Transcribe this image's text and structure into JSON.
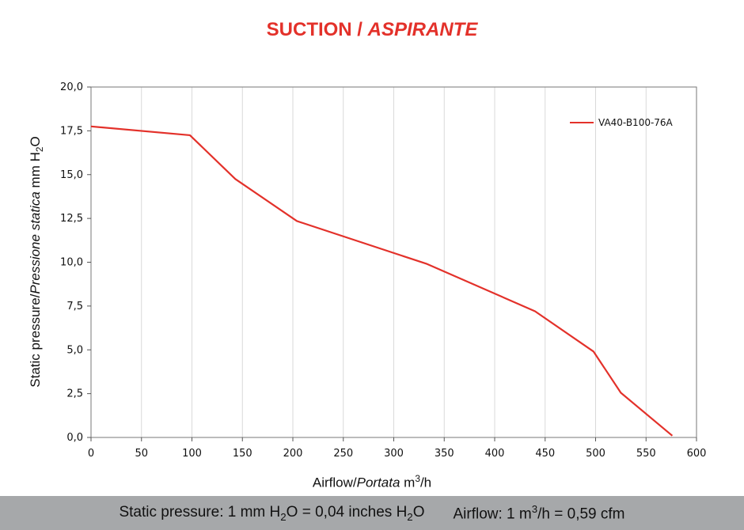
{
  "title": {
    "main": "SUCTION /",
    "italic": "ASPIRANTE"
  },
  "colors": {
    "title": "#e3312a",
    "series": "#e3312a",
    "footer_bg": "#a6a8aa",
    "grid": "#d9d9d9"
  },
  "y_axis_label": {
    "part1": "Static pressure/",
    "part2_italic": "Pressione statica",
    "part3": " mm  H",
    "sub": "2",
    "part4": "O"
  },
  "x_axis_label": {
    "part1": "Airflow/",
    "part2_italic": "Portata",
    "part3": " m",
    "sup": "3",
    "part4": "/h"
  },
  "footer": {
    "a1": "Static pressure: 1 mm H",
    "a_sub1": "2",
    "a2": "O = 0,04 inches H",
    "a_sub2": "2",
    "a3": "O",
    "b1": "Airflow: 1 m",
    "b_sup": "3",
    "b2": "/h = 0,59 cfm"
  },
  "chart_data": {
    "type": "line",
    "title": "SUCTION / ASPIRANTE",
    "xlabel": "Airflow/Portata m3/h",
    "ylabel": "Static pressure/Pressione statica mm H2O",
    "xlim": [
      0,
      600
    ],
    "ylim": [
      0,
      20
    ],
    "x_ticks": [
      0,
      50,
      100,
      150,
      200,
      250,
      300,
      350,
      400,
      450,
      500,
      550,
      600
    ],
    "y_ticks": [
      0,
      2.5,
      5,
      7.5,
      10,
      12.5,
      15,
      17.5,
      20
    ],
    "y_tick_labels": [
      "0,0",
      "2,5",
      "5,0",
      "7,5",
      "10,0",
      "12,5",
      "15,0",
      "17,5",
      "20,0"
    ],
    "grid": "vertical",
    "legend_position": "top-right",
    "series": [
      {
        "name": "VA40-B100-76A",
        "x": [
          0,
          98,
          143,
          204,
          333,
          440,
          498,
          525,
          576
        ],
        "y": [
          17.75,
          17.25,
          14.75,
          12.35,
          9.9,
          7.2,
          4.9,
          2.55,
          0.1
        ]
      }
    ]
  }
}
